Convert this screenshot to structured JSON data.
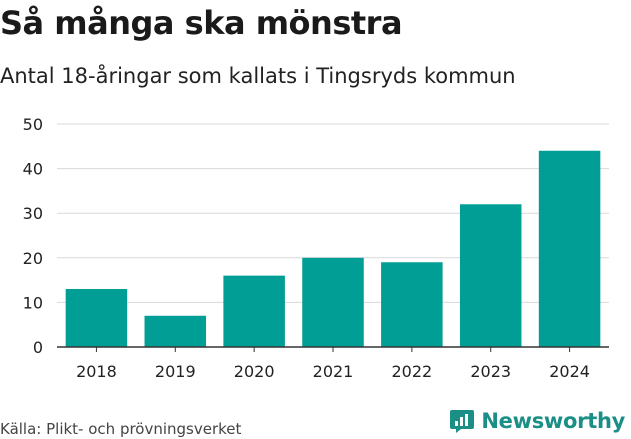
{
  "header": {
    "title": "Så många ska mönstra",
    "subtitle": "Antal 18-åringar som kallats i Tingsryds kommun"
  },
  "footer": {
    "source": "Källa: Plikt- och prövningsverket",
    "brand": "Newsworthy"
  },
  "colors": {
    "bar": "#009e94",
    "grid": "#d9d9d9",
    "axis": "#333333",
    "brand": "#1b8e86"
  },
  "chart_data": {
    "type": "bar",
    "title": "Så många ska mönstra",
    "subtitle": "Antal 18-åringar som kallats i Tingsryds kommun",
    "categories": [
      "2018",
      "2019",
      "2020",
      "2021",
      "2022",
      "2023",
      "2024"
    ],
    "values": [
      13,
      7,
      16,
      20,
      19,
      32,
      44
    ],
    "xlabel": "",
    "ylabel": "",
    "ylim": [
      0,
      50
    ],
    "yticks": [
      0,
      10,
      20,
      30,
      40,
      50
    ],
    "grid": true,
    "legend": "none"
  }
}
